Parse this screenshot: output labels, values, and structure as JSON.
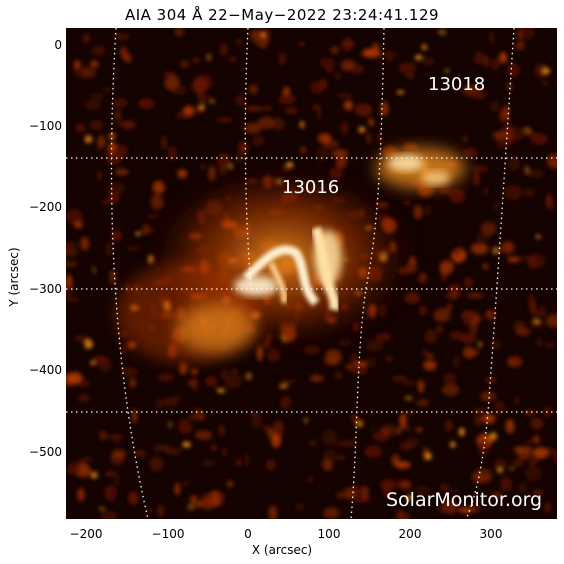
{
  "title": "AIA 304 Å 22−May−2022 23:24:41.129",
  "x_axis_label": "X (arcsec)",
  "y_axis_label": "Y (arcsec)",
  "x_ticks": [
    "−200",
    "−100",
    "0",
    "100",
    "200",
    "300"
  ],
  "y_ticks": [
    "0",
    "−100",
    "−200",
    "−300",
    "−400",
    "−500"
  ],
  "active_regions": [
    "13018",
    "13016"
  ],
  "watermark": "SolarMonitor.org",
  "colors": {
    "background": "#140300",
    "plasma_dim": "#5a1200",
    "plasma_mid": "#b83a00",
    "plasma_bright": "#ff9a20",
    "plasma_core": "#fff0d0",
    "grid": "#ffffff"
  }
}
